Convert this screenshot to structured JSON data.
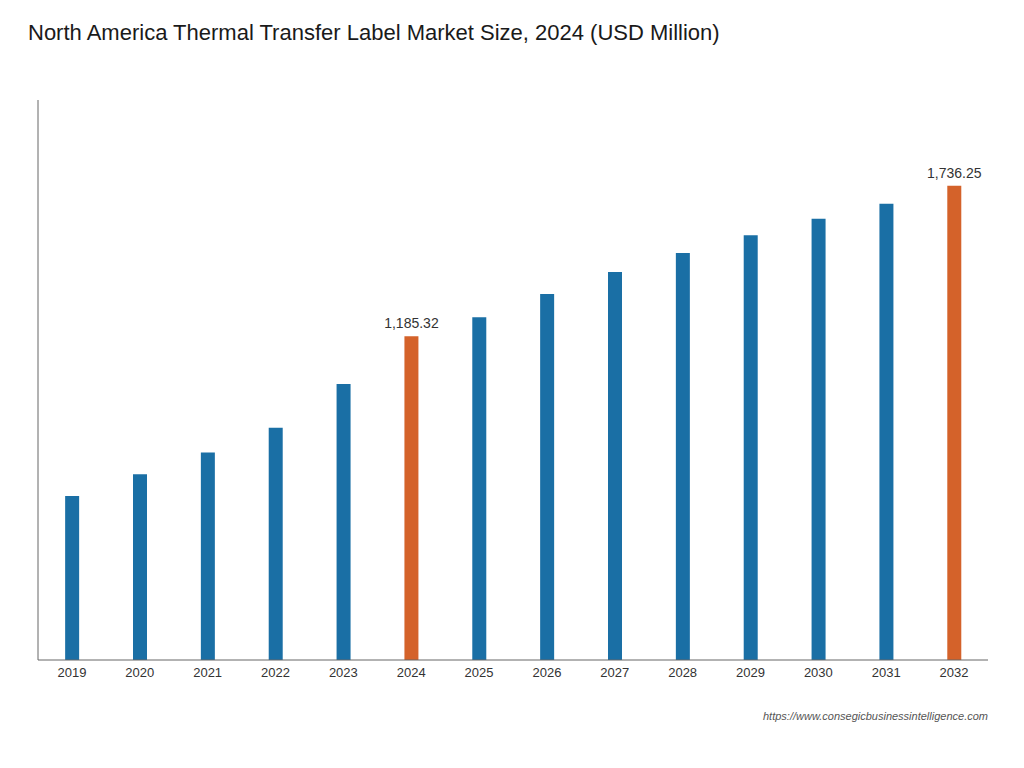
{
  "chart_data": {
    "type": "bar",
    "title": "North America Thermal Transfer Label Market Size, 2024 (USD Million)",
    "categories": [
      "2019",
      "2020",
      "2021",
      "2022",
      "2023",
      "2024",
      "2025",
      "2026",
      "2027",
      "2028",
      "2029",
      "2030",
      "2031",
      "2032"
    ],
    "values": [
      600,
      680,
      760,
      850,
      1010,
      1185.32,
      1255,
      1340,
      1420,
      1490,
      1555,
      1615,
      1670,
      1736.25
    ],
    "value_labels": [
      null,
      null,
      null,
      null,
      null,
      "1,185.32",
      null,
      null,
      null,
      null,
      null,
      null,
      null,
      "1,736.25"
    ],
    "data_labels": true,
    "colors": [
      "#1a6fa5",
      "#1a6fa5",
      "#1a6fa5",
      "#1a6fa5",
      "#1a6fa5",
      "#d4622a",
      "#1a6fa5",
      "#1a6fa5",
      "#1a6fa5",
      "#1a6fa5",
      "#1a6fa5",
      "#1a6fa5",
      "#1a6fa5",
      "#d4622a"
    ],
    "ylim": [
      0,
      2050
    ],
    "grid": false,
    "tick_labels": "x",
    "annotations": [
      "https://www.consegicbusinessintelligence.com"
    ]
  }
}
